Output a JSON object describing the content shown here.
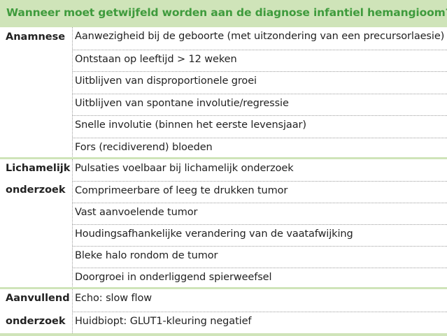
{
  "title": "Wanneer moet getwijfeld worden aan de diagnose infantiel hemangioom?",
  "sections": [
    {
      "label_lines": [
        "Anamnese"
      ],
      "rows": [
        "Aanwezigheid bij de geboorte (met uitzondering van een precursorlaesie)",
        "Ontstaan op leeftijd > 12 weken",
        "Uitblijven van disproportionele groei",
        "Uitblijven van spontane involutie/regressie",
        "Snelle involutie (binnen het eerste levensjaar)",
        "Fors (recidiverend) bloeden"
      ]
    },
    {
      "label_lines": [
        "Lichamelijk",
        "onderzoek"
      ],
      "rows": [
        "Pulsaties voelbaar bij lichamelijk onderzoek",
        "Comprimeerbare of leeg te drukken tumor",
        "Vast aanvoelende tumor",
        "Houdingsafhankelijke verandering van de vaatafwijking",
        "Bleke halo rondom de tumor",
        "Doorgroei in onderliggend spierweefsel"
      ]
    },
    {
      "label_lines": [
        "Aanvullend",
        "onderzoek"
      ],
      "rows": [
        "Echo: slow flow",
        "Huidbiopt: GLUT1-kleuring negatief"
      ]
    }
  ]
}
